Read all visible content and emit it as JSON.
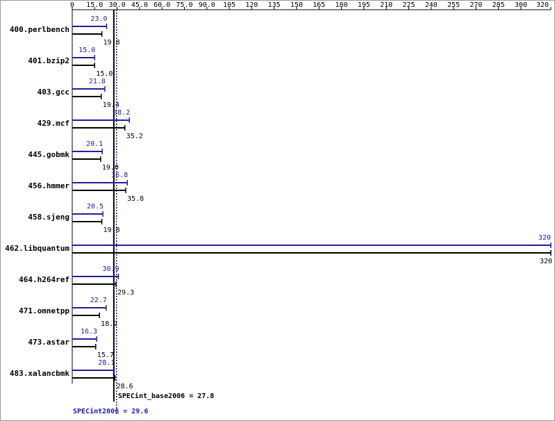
{
  "chart_data": {
    "type": "bar",
    "orientation": "horizontal",
    "categories": [
      "400.perlbench",
      "401.bzip2",
      "403.gcc",
      "429.mcf",
      "445.gobmk",
      "456.hmmer",
      "458.sjeng",
      "462.libquantum",
      "464.h264ref",
      "471.omnetpp",
      "473.astar",
      "483.xalancbmk"
    ],
    "series": [
      {
        "color": "#1f1f99",
        "values": [
          23.0,
          15.0,
          21.8,
          38.2,
          20.1,
          36.8,
          20.5,
          320,
          30.9,
          22.7,
          16.3,
          28.1
        ],
        "value_labels": [
          "23.0",
          "15.0",
          "21.8",
          "38.2",
          "20.1",
          "36.8",
          "20.5",
          "320",
          "30.9",
          "22.7",
          "16.3",
          "28.1"
        ]
      },
      {
        "color": "#000000",
        "values": [
          19.8,
          15.0,
          19.4,
          35.2,
          19.0,
          35.8,
          19.8,
          320,
          29.3,
          18.2,
          15.7,
          28.6
        ],
        "value_labels": [
          "19.8",
          "15.0",
          "19.4",
          "35.2",
          "19.0",
          "35.8",
          "19.8",
          "320",
          "29.3",
          "18.2",
          "15.7",
          "28.6"
        ]
      }
    ],
    "xlim": [
      0,
      320
    ],
    "xticks": [
      0,
      {
        "value": 15,
        "label": "15.0"
      },
      {
        "value": 30,
        "label": "30.0"
      },
      {
        "value": 45,
        "label": "45.0"
      },
      {
        "value": 60,
        "label": "60.0"
      },
      {
        "value": 75,
        "label": "75.0"
      },
      {
        "value": 90,
        "label": "90.0"
      },
      105,
      120,
      135,
      150,
      165,
      180,
      195,
      210,
      225,
      240,
      255,
      270,
      285,
      300,
      320
    ],
    "reference_lines": [
      {
        "label": "SPECint_base2006 = 27.8",
        "value": 27.8,
        "color": "#000000",
        "dash": false
      },
      {
        "label": "SPECint2006 = 29.6",
        "value": 29.6,
        "color": "#1f1f99",
        "dash": true
      }
    ]
  }
}
